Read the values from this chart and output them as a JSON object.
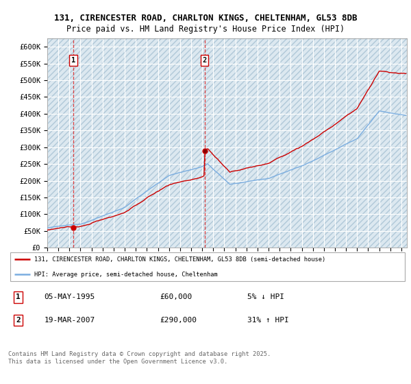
{
  "title_line1": "131, CIRENCESTER ROAD, CHARLTON KINGS, CHELTENHAM, GL53 8DB",
  "title_line2": "Price paid vs. HM Land Registry's House Price Index (HPI)",
  "ylim": [
    0,
    625000
  ],
  "yticks": [
    0,
    50000,
    100000,
    150000,
    200000,
    250000,
    300000,
    350000,
    400000,
    450000,
    500000,
    550000,
    600000
  ],
  "ytick_labels": [
    "£0",
    "£50K",
    "£100K",
    "£150K",
    "£200K",
    "£250K",
    "£300K",
    "£350K",
    "£400K",
    "£450K",
    "£500K",
    "£550K",
    "£600K"
  ],
  "xlim_start": 1993.0,
  "xlim_end": 2025.5,
  "sale1_date": 1995.34,
  "sale1_price": 60000,
  "sale2_date": 2007.21,
  "sale2_price": 290000,
  "line_color_actual": "#cc0000",
  "line_color_hpi": "#7aade0",
  "chart_bg_color": "#dce8f0",
  "grid_color": "#ffffff",
  "legend_label_actual": "131, CIRENCESTER ROAD, CHARLTON KINGS, CHELTENHAM, GL53 8DB (semi-detached house)",
  "legend_label_hpi": "HPI: Average price, semi-detached house, Cheltenham",
  "annotation1_label": "1",
  "annotation1_date": "05-MAY-1995",
  "annotation1_price": "£60,000",
  "annotation1_hpi": "5% ↓ HPI",
  "annotation2_label": "2",
  "annotation2_date": "19-MAR-2007",
  "annotation2_price": "£290,000",
  "annotation2_hpi": "31% ↑ HPI",
  "footer": "Contains HM Land Registry data © Crown copyright and database right 2025.\nThis data is licensed under the Open Government Licence v3.0."
}
